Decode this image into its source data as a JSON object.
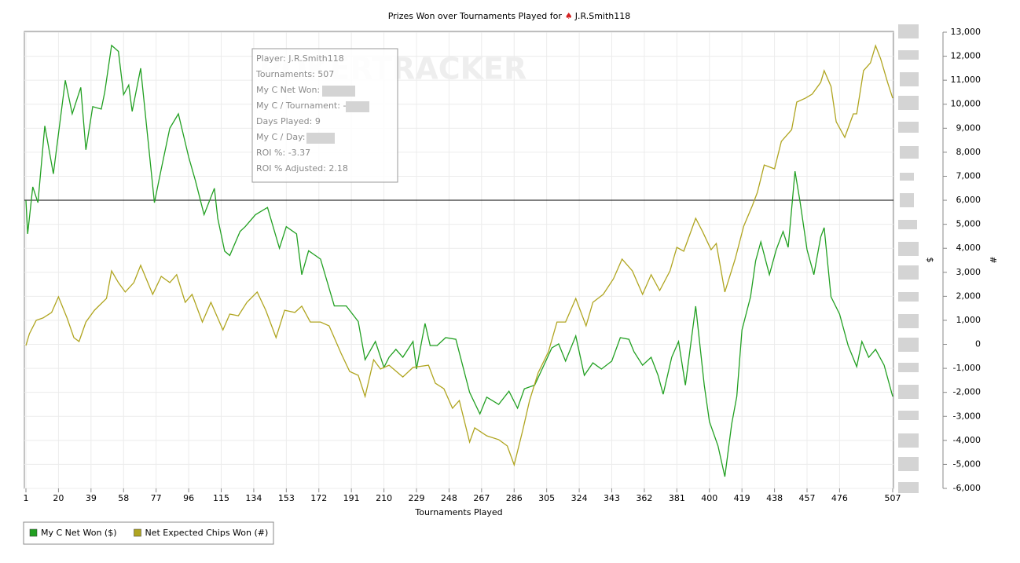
{
  "chart_data": {
    "type": "line",
    "title": "Prizes Won over Tournaments Played for",
    "title_player": "J.R.Smith118",
    "watermark": "POKERTRACKER",
    "x_label": "Tournaments Played",
    "y_label": "$",
    "y2_label": "#",
    "tooltip": [
      "Player: J.R.Smith118",
      "Tournaments: 507",
      "My C Net Won:",
      "My C / Tournament: -",
      "Days Played: 9",
      "My C / Day:",
      "ROI %: -3.37",
      "ROI % Adjusted: 2.18"
    ],
    "xlim": [
      1,
      507
    ],
    "xticks": [
      1,
      20,
      39,
      58,
      77,
      96,
      115,
      134,
      153,
      172,
      191,
      210,
      229,
      248,
      267,
      286,
      305,
      324,
      343,
      362,
      381,
      400,
      419,
      438,
      457,
      476,
      507
    ],
    "ylim": [
      -6000,
      13000
    ],
    "yticks": [
      {
        "value": -6000,
        "label": "-6,000"
      },
      {
        "value": -5000,
        "label": "-5,000"
      },
      {
        "value": -4000,
        "label": "-4,000"
      },
      {
        "value": -3000,
        "label": "-3,000"
      },
      {
        "value": -2000,
        "label": "-2,000"
      },
      {
        "value": -1000,
        "label": "-1,000"
      },
      0,
      {
        "value": 1000,
        "label": "1,000"
      },
      {
        "value": 2000,
        "label": "2,000"
      },
      {
        "value": 3000,
        "label": "3,000"
      },
      {
        "value": 4000,
        "label": "4,000"
      },
      {
        "value": 5000,
        "label": "5,000"
      },
      {
        "value": 6000,
        "label": "6,000"
      },
      {
        "value": 7000,
        "label": "7,000"
      },
      {
        "value": 8000,
        "label": "8,000"
      },
      {
        "value": 9000,
        "label": "9,000"
      },
      {
        "value": 10000,
        "label": "10,000"
      },
      {
        "value": 11000,
        "label": "11,000"
      },
      {
        "value": 12000,
        "label": "12,000"
      },
      {
        "value": 13000,
        "label": "13,000"
      }
    ],
    "reference_line": 6000,
    "grid": true,
    "series": [
      {
        "name": "My C Net Won ($)",
        "color": "#22a022",
        "x": [
          1,
          2,
          5,
          8,
          12,
          17,
          24,
          28,
          33,
          36,
          40,
          45,
          47,
          51,
          55,
          58,
          61,
          63,
          68,
          76,
          80,
          85,
          90,
          96,
          100,
          105,
          111,
          113,
          117,
          120,
          126,
          129,
          135,
          142,
          149,
          153,
          159,
          162,
          166,
          173,
          181,
          188,
          195,
          199,
          205,
          210,
          213,
          217,
          221,
          227,
          229,
          234,
          237,
          241,
          246,
          252,
          260,
          266,
          270,
          277,
          283,
          288,
          292,
          298,
          304,
          308,
          312,
          316,
          322,
          327,
          332,
          337,
          343,
          348,
          353,
          356,
          361,
          366,
          370,
          373,
          378,
          382,
          386,
          392,
          397,
          400,
          405,
          409,
          413,
          416,
          419,
          424,
          427,
          430,
          435,
          439,
          443,
          446,
          450,
          453,
          457,
          461,
          465,
          467,
          471,
          476,
          481,
          486,
          489,
          493,
          497,
          502,
          507
        ],
        "values": [
          6000,
          4600,
          6560,
          5900,
          9100,
          7100,
          11000,
          9600,
          10700,
          8100,
          9900,
          9800,
          10500,
          12450,
          12200,
          10400,
          10800,
          9700,
          11500,
          5900,
          7300,
          9000,
          9600,
          7800,
          6800,
          5400,
          6500,
          5250,
          3880,
          3700,
          4700,
          4900,
          5400,
          5700,
          4000,
          4900,
          4600,
          2900,
          3900,
          3550,
          1600,
          1600,
          950,
          -640,
          120,
          -960,
          -540,
          -210,
          -540,
          120,
          -1030,
          870,
          -50,
          -50,
          280,
          210,
          -2000,
          -2900,
          -2200,
          -2500,
          -1950,
          -2660,
          -1850,
          -1700,
          -770,
          -150,
          20,
          -700,
          350,
          -1290,
          -770,
          -1030,
          -700,
          280,
          210,
          -310,
          -870,
          -540,
          -1290,
          -2080,
          -540,
          120,
          -1700,
          1590,
          -1700,
          -3220,
          -4230,
          -5510,
          -3320,
          -2170,
          600,
          1980,
          3480,
          4270,
          2900,
          3940,
          4700,
          4040,
          7210,
          5900,
          3940,
          2900,
          4470,
          4860,
          1980,
          1260,
          -50,
          -930,
          120,
          -540,
          -210,
          -870,
          -2170
        ]
      },
      {
        "name": "Net Expected Chips Won (#)",
        "color": "#b0a520",
        "x": [
          1,
          3,
          7,
          11,
          16,
          20,
          25,
          29,
          32,
          36,
          41,
          48,
          51,
          55,
          59,
          64,
          68,
          75,
          80,
          85,
          89,
          94,
          98,
          104,
          109,
          116,
          120,
          125,
          130,
          136,
          141,
          147,
          152,
          158,
          162,
          167,
          173,
          178,
          185,
          190,
          195,
          199,
          204,
          208,
          213,
          221,
          227,
          236,
          240,
          245,
          250,
          254,
          260,
          263,
          270,
          277,
          282,
          286,
          291,
          295,
          300,
          306,
          311,
          316,
          322,
          328,
          332,
          338,
          344,
          349,
          355,
          361,
          366,
          371,
          377,
          381,
          385,
          392,
          396,
          401,
          404,
          409,
          415,
          420,
          425,
          428,
          432,
          438,
          442,
          448,
          451,
          456,
          460,
          465,
          467,
          471,
          474,
          479,
          484,
          486,
          490,
          494,
          497,
          500,
          504,
          507
        ],
        "values": [
          -50,
          440,
          1000,
          1100,
          1330,
          1980,
          1100,
          280,
          120,
          930,
          1420,
          1910,
          3060,
          2570,
          2180,
          2570,
          3290,
          2080,
          2830,
          2570,
          2900,
          1750,
          2080,
          930,
          1750,
          600,
          1260,
          1190,
          1750,
          2180,
          1420,
          280,
          1420,
          1330,
          1590,
          930,
          930,
          770,
          -380,
          -1130,
          -1290,
          -2170,
          -640,
          -1030,
          -870,
          -1360,
          -960,
          -870,
          -1620,
          -1850,
          -2660,
          -2340,
          -4070,
          -3480,
          -3810,
          -3970,
          -4230,
          -5020,
          -3580,
          -2340,
          -1190,
          -310,
          930,
          930,
          1910,
          770,
          1750,
          2080,
          2730,
          3550,
          3060,
          2080,
          2900,
          2240,
          3060,
          4040,
          3880,
          5250,
          4700,
          3940,
          4200,
          2180,
          3550,
          4920,
          5770,
          6330,
          7470,
          7310,
          8450,
          8940,
          10090,
          10250,
          10420,
          10910,
          11400,
          10740,
          9270,
          8620,
          9600,
          9600,
          11400,
          11720,
          12440,
          11890,
          10910,
          10250
        ]
      }
    ]
  }
}
